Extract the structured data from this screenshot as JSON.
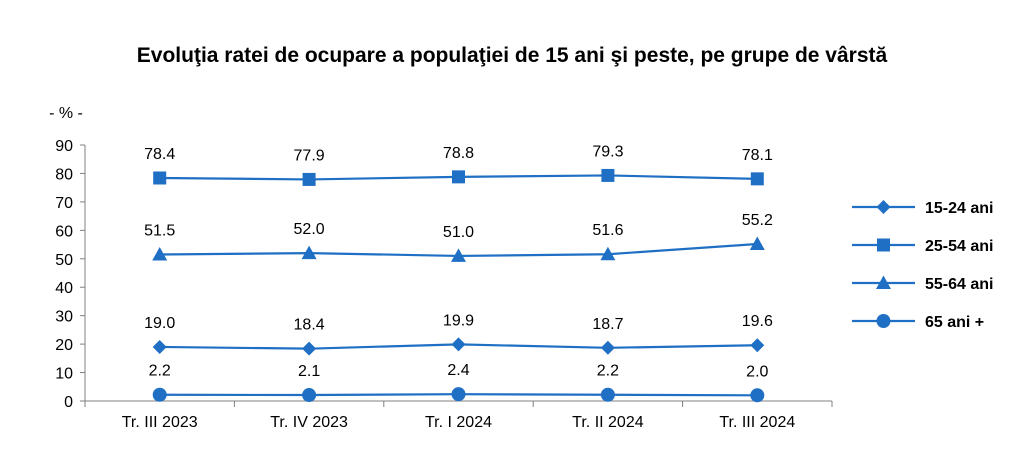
{
  "chart_data": {
    "type": "line",
    "title": "Evoluţia ratei de ocupare a populaţiei de 15 ani şi peste, pe grupe de vârstă",
    "unit_label": "- % -",
    "categories": [
      "Tr. III 2023",
      "Tr. IV 2023",
      "Tr. I 2024",
      "Tr. II 2024",
      "Tr. III 2024"
    ],
    "ylim": [
      0,
      90
    ],
    "yticks": [
      0,
      10,
      20,
      30,
      40,
      50,
      60,
      70,
      80,
      90
    ],
    "grid": false,
    "legend": "right",
    "color": "#1f6fc4",
    "series": [
      {
        "name": "15-24 ani",
        "marker": "diamond",
        "values": [
          19.0,
          18.4,
          19.9,
          18.7,
          19.6
        ],
        "labels": [
          "19.0",
          "18.4",
          "19.9",
          "18.7",
          "19.6"
        ]
      },
      {
        "name": "25-54 ani",
        "marker": "square",
        "values": [
          78.4,
          77.9,
          78.8,
          79.3,
          78.1
        ],
        "labels": [
          "78.4",
          "77.9",
          "78.8",
          "79.3",
          "78.1"
        ]
      },
      {
        "name": "55-64 ani",
        "marker": "triangle",
        "values": [
          51.5,
          52.0,
          51.0,
          51.6,
          55.2
        ],
        "labels": [
          "51.5",
          "52.0",
          "51.0",
          "51.6",
          "55.2"
        ]
      },
      {
        "name": "65 ani +",
        "marker": "circle",
        "values": [
          2.2,
          2.1,
          2.4,
          2.2,
          2.0
        ],
        "labels": [
          "2.2",
          "2.1",
          "2.4",
          "2.2",
          "2.0"
        ]
      }
    ]
  }
}
